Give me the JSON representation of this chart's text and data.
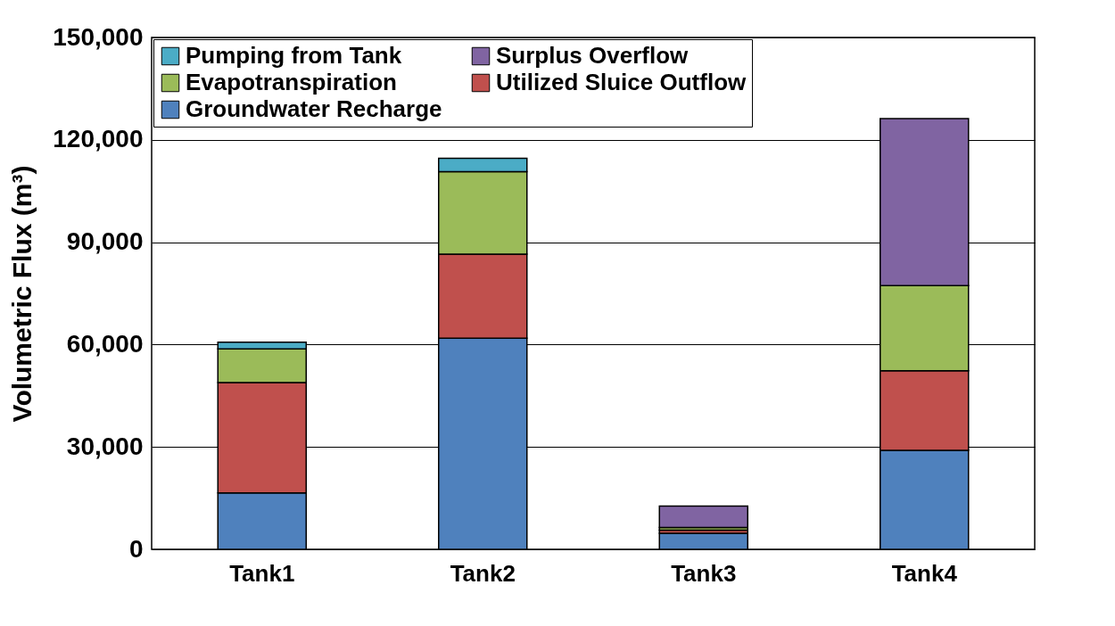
{
  "chart_data": {
    "type": "bar",
    "stacked": true,
    "ylabel": "Volumetric Flux (m³)",
    "categories": [
      "Tank1",
      "Tank2",
      "Tank3",
      "Tank4"
    ],
    "series": [
      {
        "name": "Groundwater Recharge",
        "color": "#4f81bd",
        "values": [
          16500,
          61900,
          4700,
          29000
        ]
      },
      {
        "name": "Utilized Sluice Outflow",
        "color": "#c0504d",
        "values": [
          32400,
          24600,
          900,
          23300
        ]
      },
      {
        "name": "Evapotranspiration",
        "color": "#9bbb59",
        "values": [
          9800,
          24200,
          800,
          25000
        ]
      },
      {
        "name": "Surplus Overflow",
        "color": "#8064a2",
        "values": [
          null,
          null,
          6300,
          48900
        ]
      },
      {
        "name": "Pumping from Tank",
        "color": "#4bacc6",
        "values": [
          2000,
          3900,
          null,
          null
        ]
      }
    ],
    "ylim": [
      0,
      150000
    ],
    "yticks": [
      0,
      {
        "value": 30000,
        "label": "30,000"
      },
      {
        "value": 60000,
        "label": "60,000"
      },
      {
        "value": 90000,
        "label": "90,000"
      },
      {
        "value": 120000,
        "label": "120,000"
      },
      {
        "value": 150000,
        "label": "150,000"
      }
    ],
    "grid": "y",
    "legend": "top left"
  }
}
